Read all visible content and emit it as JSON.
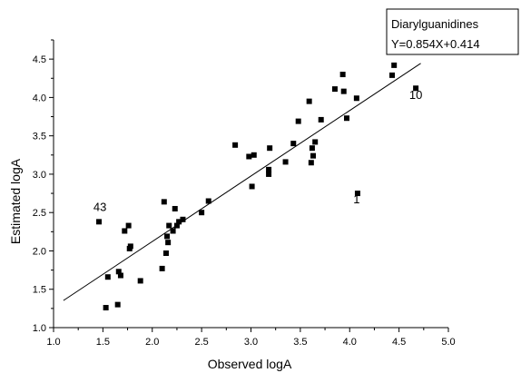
{
  "chart_data": {
    "type": "scatter",
    "xlabel": "Observed logA",
    "ylabel": "Estimated logA",
    "xlim": [
      1.0,
      5.0
    ],
    "ylim": [
      1.0,
      4.75
    ],
    "xticks": [
      "1.0",
      "1.5",
      "2.0",
      "2.5",
      "3.0",
      "3.5",
      "4.0",
      "4.5",
      "5.0"
    ],
    "yticks": [
      "1.0",
      "1.5",
      "2.0",
      "2.5",
      "3.0",
      "3.5",
      "4.0",
      "4.5"
    ],
    "grid": false,
    "legend": {
      "placement": "top-right",
      "title": "Diarylguanidines",
      "equation": "Y=0.854X+0.414"
    },
    "fit_line": {
      "slope": 0.854,
      "intercept": 0.414,
      "x_range": [
        1.1,
        4.72
      ]
    },
    "annotations": [
      {
        "text": "43",
        "x": 1.47,
        "y": 2.52
      },
      {
        "text": "1",
        "x": 4.07,
        "y": 2.62
      },
      {
        "text": "10",
        "x": 4.67,
        "y": 3.98
      }
    ],
    "points": [
      [
        1.46,
        2.38
      ],
      [
        1.53,
        1.26
      ],
      [
        1.55,
        1.66
      ],
      [
        1.65,
        1.3
      ],
      [
        1.66,
        1.73
      ],
      [
        1.68,
        1.68
      ],
      [
        1.72,
        2.26
      ],
      [
        1.76,
        2.33
      ],
      [
        1.77,
        2.03
      ],
      [
        1.78,
        2.06
      ],
      [
        1.88,
        1.61
      ],
      [
        2.1,
        1.77
      ],
      [
        2.12,
        2.64
      ],
      [
        2.14,
        1.97
      ],
      [
        2.15,
        2.19
      ],
      [
        2.16,
        2.11
      ],
      [
        2.17,
        2.33
      ],
      [
        2.21,
        2.26
      ],
      [
        2.23,
        2.55
      ],
      [
        2.25,
        2.33
      ],
      [
        2.27,
        2.38
      ],
      [
        2.31,
        2.41
      ],
      [
        2.5,
        2.5
      ],
      [
        2.57,
        2.65
      ],
      [
        2.84,
        3.38
      ],
      [
        2.98,
        3.23
      ],
      [
        3.01,
        2.84
      ],
      [
        3.03,
        3.25
      ],
      [
        3.18,
        3.0
      ],
      [
        3.18,
        3.06
      ],
      [
        3.19,
        3.34
      ],
      [
        3.35,
        3.16
      ],
      [
        3.43,
        3.4
      ],
      [
        3.48,
        3.69
      ],
      [
        3.59,
        3.95
      ],
      [
        3.61,
        3.15
      ],
      [
        3.62,
        3.34
      ],
      [
        3.63,
        3.24
      ],
      [
        3.65,
        3.42
      ],
      [
        3.71,
        3.71
      ],
      [
        3.85,
        4.11
      ],
      [
        3.93,
        4.3
      ],
      [
        3.94,
        4.08
      ],
      [
        3.97,
        3.73
      ],
      [
        4.07,
        3.99
      ],
      [
        4.08,
        2.75
      ],
      [
        4.43,
        4.29
      ],
      [
        4.45,
        4.42
      ],
      [
        4.67,
        4.12
      ]
    ]
  }
}
